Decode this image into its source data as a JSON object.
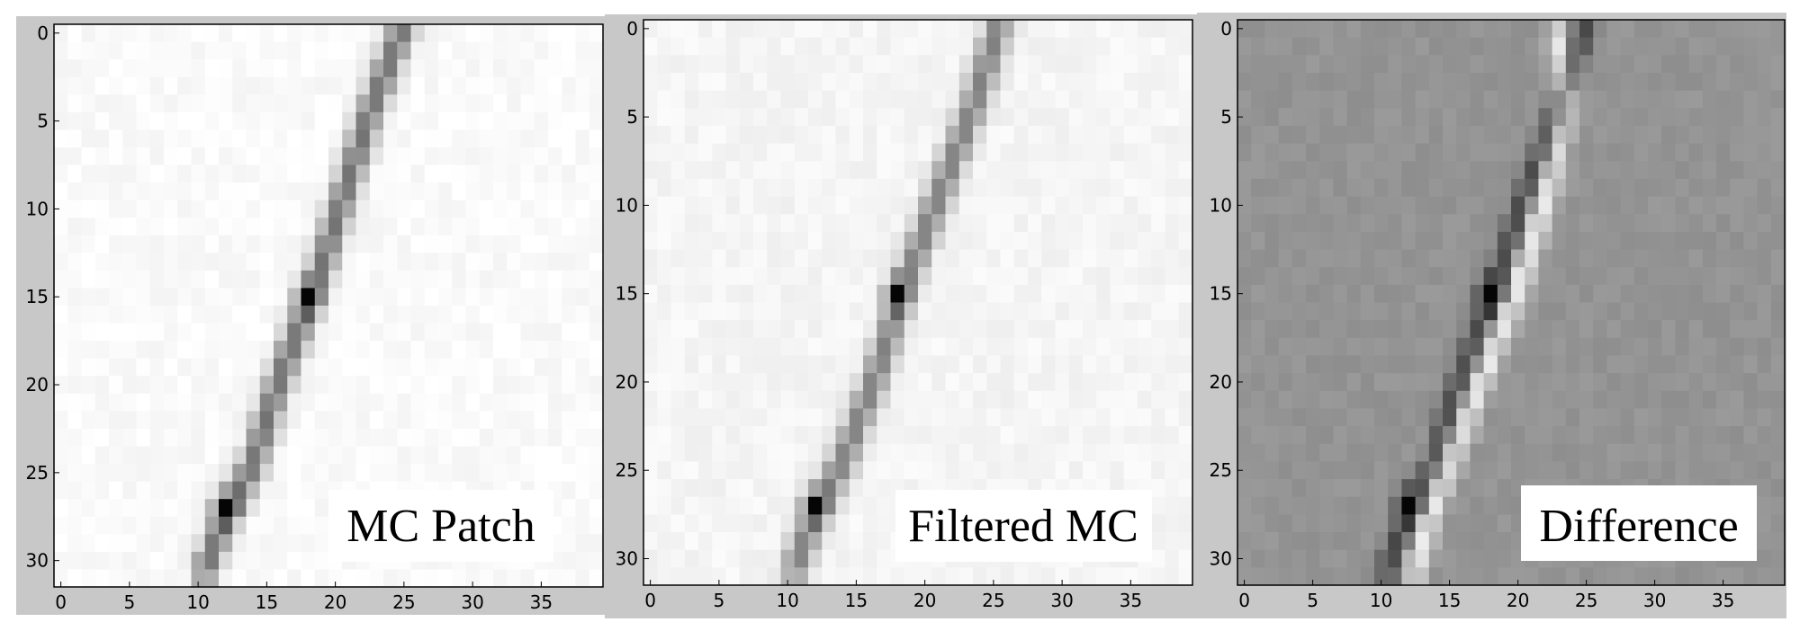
{
  "chart_data": [
    {
      "type": "heatmap",
      "colormap": "gray",
      "label": "MC Patch",
      "xticks": [
        0,
        5,
        10,
        15,
        20,
        25,
        30,
        35
      ],
      "yticks": [
        0,
        5,
        10,
        15,
        20,
        25,
        30
      ],
      "xlim": [
        0,
        39
      ],
      "ylim": [
        31,
        0
      ],
      "background": 0.98,
      "line": [
        [
          25.5,
          0
        ],
        [
          23.0,
          5
        ],
        [
          21.0,
          10
        ],
        [
          19.0,
          15
        ],
        [
          16.5,
          20
        ],
        [
          14.5,
          25
        ],
        [
          12.5,
          28
        ],
        [
          11.0,
          31
        ]
      ],
      "line_intensity": 0.45,
      "dark_spots": [
        [
          18.5,
          15.5
        ],
        [
          12.5,
          27.5
        ]
      ]
    },
    {
      "type": "heatmap",
      "colormap": "gray",
      "label": "Filtered MC",
      "xticks": [
        0,
        5,
        10,
        15,
        20,
        25,
        30,
        35
      ],
      "yticks": [
        0,
        5,
        10,
        15,
        20,
        25,
        30
      ],
      "xlim": [
        0,
        39
      ],
      "ylim": [
        31,
        0
      ],
      "background": 0.96,
      "line": [
        [
          26.0,
          0
        ],
        [
          24.0,
          5
        ],
        [
          21.5,
          10
        ],
        [
          19.0,
          15
        ],
        [
          17.0,
          20
        ],
        [
          14.5,
          25
        ],
        [
          12.5,
          28
        ],
        [
          11.0,
          31
        ]
      ],
      "line_intensity": 0.5,
      "dark_spots": [
        [
          18.5,
          15.5
        ],
        [
          12.5,
          27.5
        ]
      ]
    },
    {
      "type": "heatmap",
      "colormap": "gray",
      "label": "Difference",
      "xticks": [
        0,
        5,
        10,
        15,
        20,
        25,
        30,
        35
      ],
      "yticks": [
        0,
        5,
        10,
        15,
        20,
        25,
        30
      ],
      "xlim": [
        0,
        39
      ],
      "ylim": [
        31,
        0
      ],
      "background": 0.58,
      "dark_line": [
        [
          25.5,
          0
        ],
        [
          23.5,
          5
        ],
        [
          21.0,
          10
        ],
        [
          19.0,
          15
        ],
        [
          16.5,
          20
        ],
        [
          14.5,
          25
        ],
        [
          12.5,
          28
        ],
        [
          11.0,
          31
        ]
      ],
      "bright_line": [
        [
          23.5,
          1
        ],
        [
          24.0,
          5
        ],
        [
          22.5,
          10
        ],
        [
          20.5,
          15
        ],
        [
          18.0,
          20
        ],
        [
          16.0,
          24
        ],
        [
          14.0,
          28
        ],
        [
          13.0,
          31
        ]
      ],
      "dark_spots": [
        [
          18.5,
          15.5
        ],
        [
          12.5,
          27.5
        ]
      ]
    }
  ]
}
